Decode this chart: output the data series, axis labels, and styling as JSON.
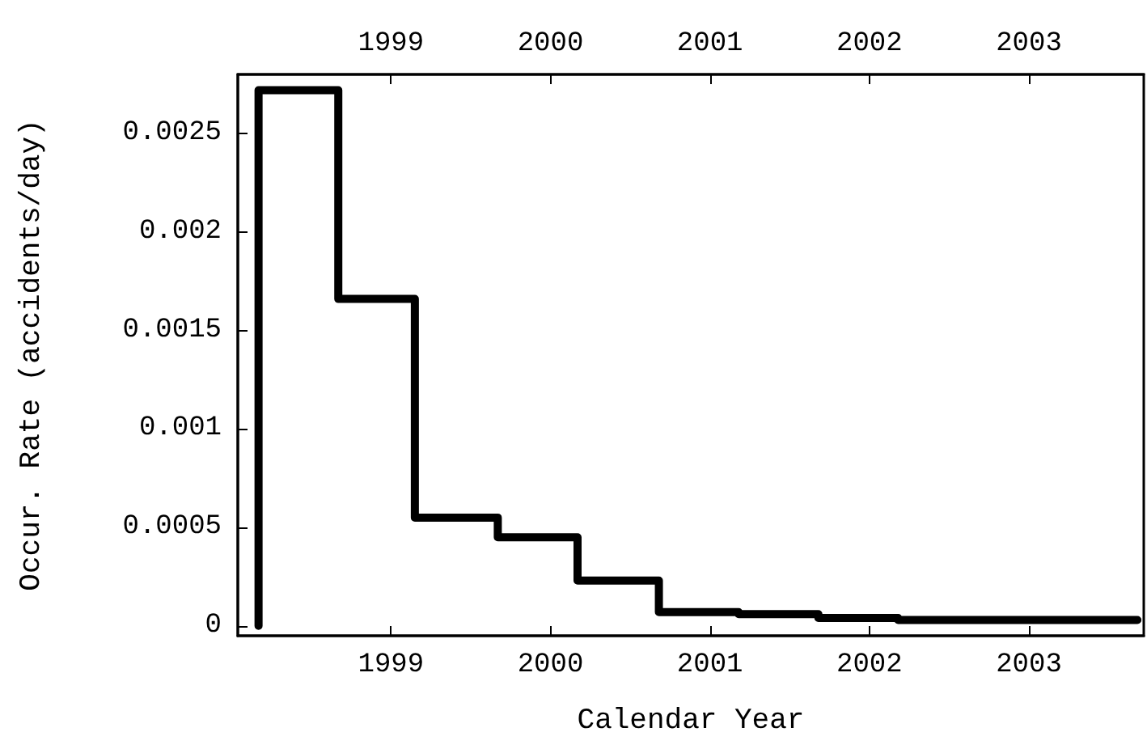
{
  "chart_data": {
    "type": "step",
    "xlabel": "Calendar Year",
    "ylabel": "Occur. Rate (accidents/day)",
    "x": [
      1998.17,
      1998.67,
      1999.15,
      1999.67,
      2000.17,
      2000.68,
      2001.18,
      2001.68,
      2002.18,
      2003.68
    ],
    "values": [
      0,
      0.00272,
      0.00166,
      0.00055,
      0.00045,
      0.00023,
      7e-05,
      6e-05,
      4e-05,
      3e-05
    ],
    "color": "#000000",
    "xlim": [
      1998.04,
      2003.72
    ],
    "xticks": [
      1999,
      2000,
      2001,
      2002,
      2003
    ],
    "x2lim": [
      1998.04,
      2003.72
    ],
    "x2ticks": [
      1999,
      2000,
      2001,
      2002,
      2003
    ],
    "ylim": [
      -5e-05,
      0.0028
    ],
    "yticks": [
      0,
      0.0005,
      0.001,
      0.0015,
      0.002,
      0.0025
    ],
    "grid": false,
    "marker": "none",
    "line_style": "solid"
  }
}
